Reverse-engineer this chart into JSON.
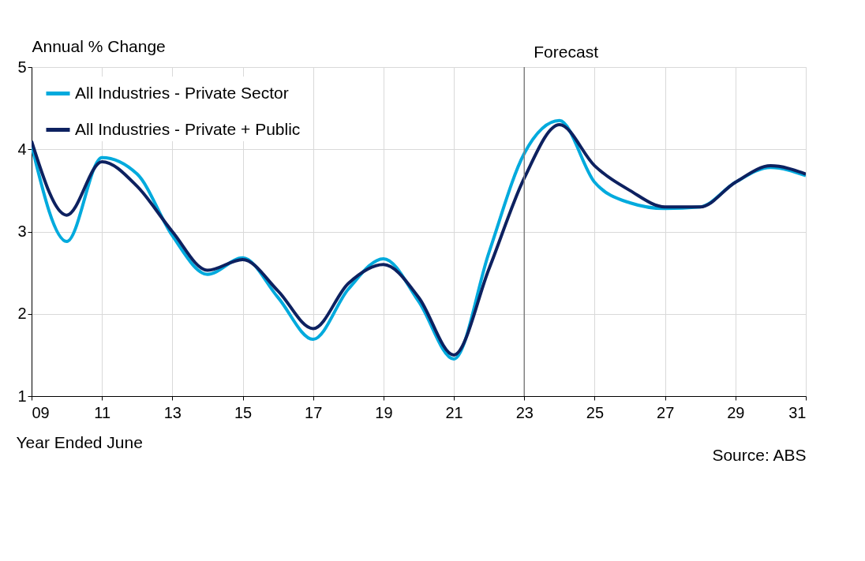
{
  "chart_data": {
    "type": "line",
    "ylabel": "Annual % Change",
    "xlabel": "Year Ended June",
    "x": [
      2009,
      2010,
      2011,
      2012,
      2013,
      2014,
      2015,
      2016,
      2017,
      2018,
      2019,
      2020,
      2021,
      2022,
      2023,
      2024,
      2025,
      2026,
      2027,
      2028,
      2029,
      2030,
      2031
    ],
    "series": [
      {
        "name": "All Industries - Private Sector",
        "color": "#00aadd",
        "values": [
          4.05,
          2.88,
          3.9,
          3.7,
          2.95,
          2.48,
          2.68,
          2.2,
          1.69,
          2.3,
          2.67,
          2.15,
          1.45,
          2.75,
          3.95,
          4.35,
          3.6,
          3.35,
          3.28,
          3.3,
          3.6,
          3.78,
          3.68
        ]
      },
      {
        "name": "All Industries - Private + Public",
        "color": "#0d2160",
        "values": [
          4.1,
          3.2,
          3.85,
          3.55,
          3.0,
          2.53,
          2.66,
          2.28,
          1.82,
          2.37,
          2.6,
          2.2,
          1.5,
          2.55,
          3.65,
          4.3,
          3.8,
          3.5,
          3.3,
          3.3,
          3.6,
          3.8,
          3.7
        ]
      }
    ],
    "xlim": [
      2009,
      2031
    ],
    "xticks": [
      {
        "value": 2009,
        "label": "09"
      },
      {
        "value": 2011,
        "label": "11"
      },
      {
        "value": 2013,
        "label": "13"
      },
      {
        "value": 2015,
        "label": "15"
      },
      {
        "value": 2017,
        "label": "17"
      },
      {
        "value": 2019,
        "label": "19"
      },
      {
        "value": 2021,
        "label": "21"
      },
      {
        "value": 2023,
        "label": "23"
      },
      {
        "value": 2025,
        "label": "25"
      },
      {
        "value": 2027,
        "label": "27"
      },
      {
        "value": 2029,
        "label": "29"
      },
      {
        "value": 2031,
        "label": "31"
      }
    ],
    "ylim": [
      1,
      5
    ],
    "yticks": [
      1,
      2,
      3,
      4,
      5
    ],
    "ref_lines": [
      {
        "axis": "x",
        "value": 2023,
        "label": "Forecast",
        "color": "#808080"
      }
    ],
    "annotations": [
      "Source: ABS"
    ],
    "grid": true,
    "legend": "top left",
    "marker": "none",
    "line_style": "solid"
  }
}
